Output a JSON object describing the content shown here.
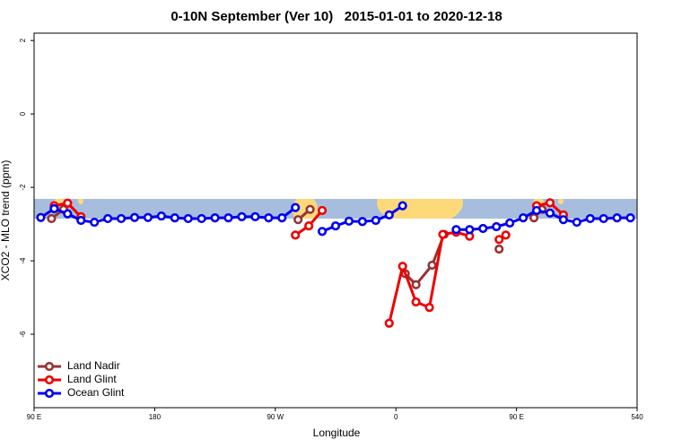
{
  "chart_data": {
    "type": "line",
    "title": "0-10N September (Ver 10)   2015-01-01 to 2020-12-18",
    "x_label": "Longitude",
    "y_label": "XCO2 - MLO trend (ppm)",
    "xlim": [
      90,
      540
    ],
    "xticks": [
      {
        "value": 90,
        "label": "90 E"
      },
      180,
      {
        "value": 270,
        "label": "90 W"
      },
      {
        "value": 360,
        "label": "0"
      },
      {
        "value": 450,
        "label": "90 E"
      },
      540
    ],
    "ylim": [
      -8,
      2.2
    ],
    "yticks": [
      2,
      0,
      -2,
      -4,
      -6
    ],
    "legend": "bottom-left",
    "series": [
      {
        "name": "Land Nadir",
        "color": "#993333",
        "x": [
          103,
          112,
          125,
          287,
          296,
          305,
          367,
          375,
          387,
          396,
          405,
          437,
          450,
          463,
          469
        ],
        "values": [
          -2.85,
          -2.6,
          null,
          -2.88,
          -2.6,
          null,
          -4.35,
          -4.65,
          -4.12,
          -3.28,
          null,
          -3.68,
          null,
          -2.83,
          -2.6
        ]
      },
      {
        "name": "Land Glint",
        "color": "#ee0000",
        "x": [
          105,
          115,
          125,
          135,
          285,
          295,
          305,
          315,
          355,
          365,
          375,
          385,
          395,
          405,
          415,
          425,
          437,
          442,
          455,
          465,
          475,
          485
        ],
        "values": [
          -2.5,
          -2.43,
          -2.8,
          null,
          -3.3,
          -3.05,
          -2.63,
          null,
          -5.7,
          -4.15,
          -5.12,
          -5.27,
          -3.28,
          -3.22,
          -3.33,
          null,
          -3.42,
          -3.3,
          null,
          -2.5,
          -2.42,
          -2.75
        ]
      },
      {
        "name": "Ocean Glint",
        "color": "#0000ee",
        "x": [
          95,
          105,
          115,
          125,
          135,
          145,
          155,
          165,
          175,
          185,
          195,
          205,
          215,
          225,
          235,
          245,
          255,
          265,
          275,
          285,
          295,
          305,
          315,
          325,
          335,
          345,
          355,
          365,
          375,
          385,
          395,
          405,
          415,
          425,
          435,
          445,
          455,
          465,
          475,
          485,
          495,
          505,
          515,
          525,
          535
        ],
        "values": [
          -2.82,
          -2.58,
          -2.72,
          -2.9,
          -2.95,
          -2.85,
          -2.85,
          -2.82,
          -2.82,
          -2.78,
          -2.83,
          -2.85,
          -2.85,
          -2.83,
          -2.83,
          -2.8,
          -2.8,
          -2.83,
          -2.83,
          -2.55,
          null,
          -3.2,
          -3.05,
          -2.92,
          -2.93,
          -2.9,
          -2.75,
          -2.5,
          null,
          null,
          null,
          -3.15,
          -3.15,
          -3.12,
          -3.07,
          -2.97,
          -2.83,
          -2.63,
          -2.7,
          -2.88,
          -2.95,
          -2.85,
          -2.85,
          -2.83,
          -2.83
        ]
      }
    ]
  }
}
